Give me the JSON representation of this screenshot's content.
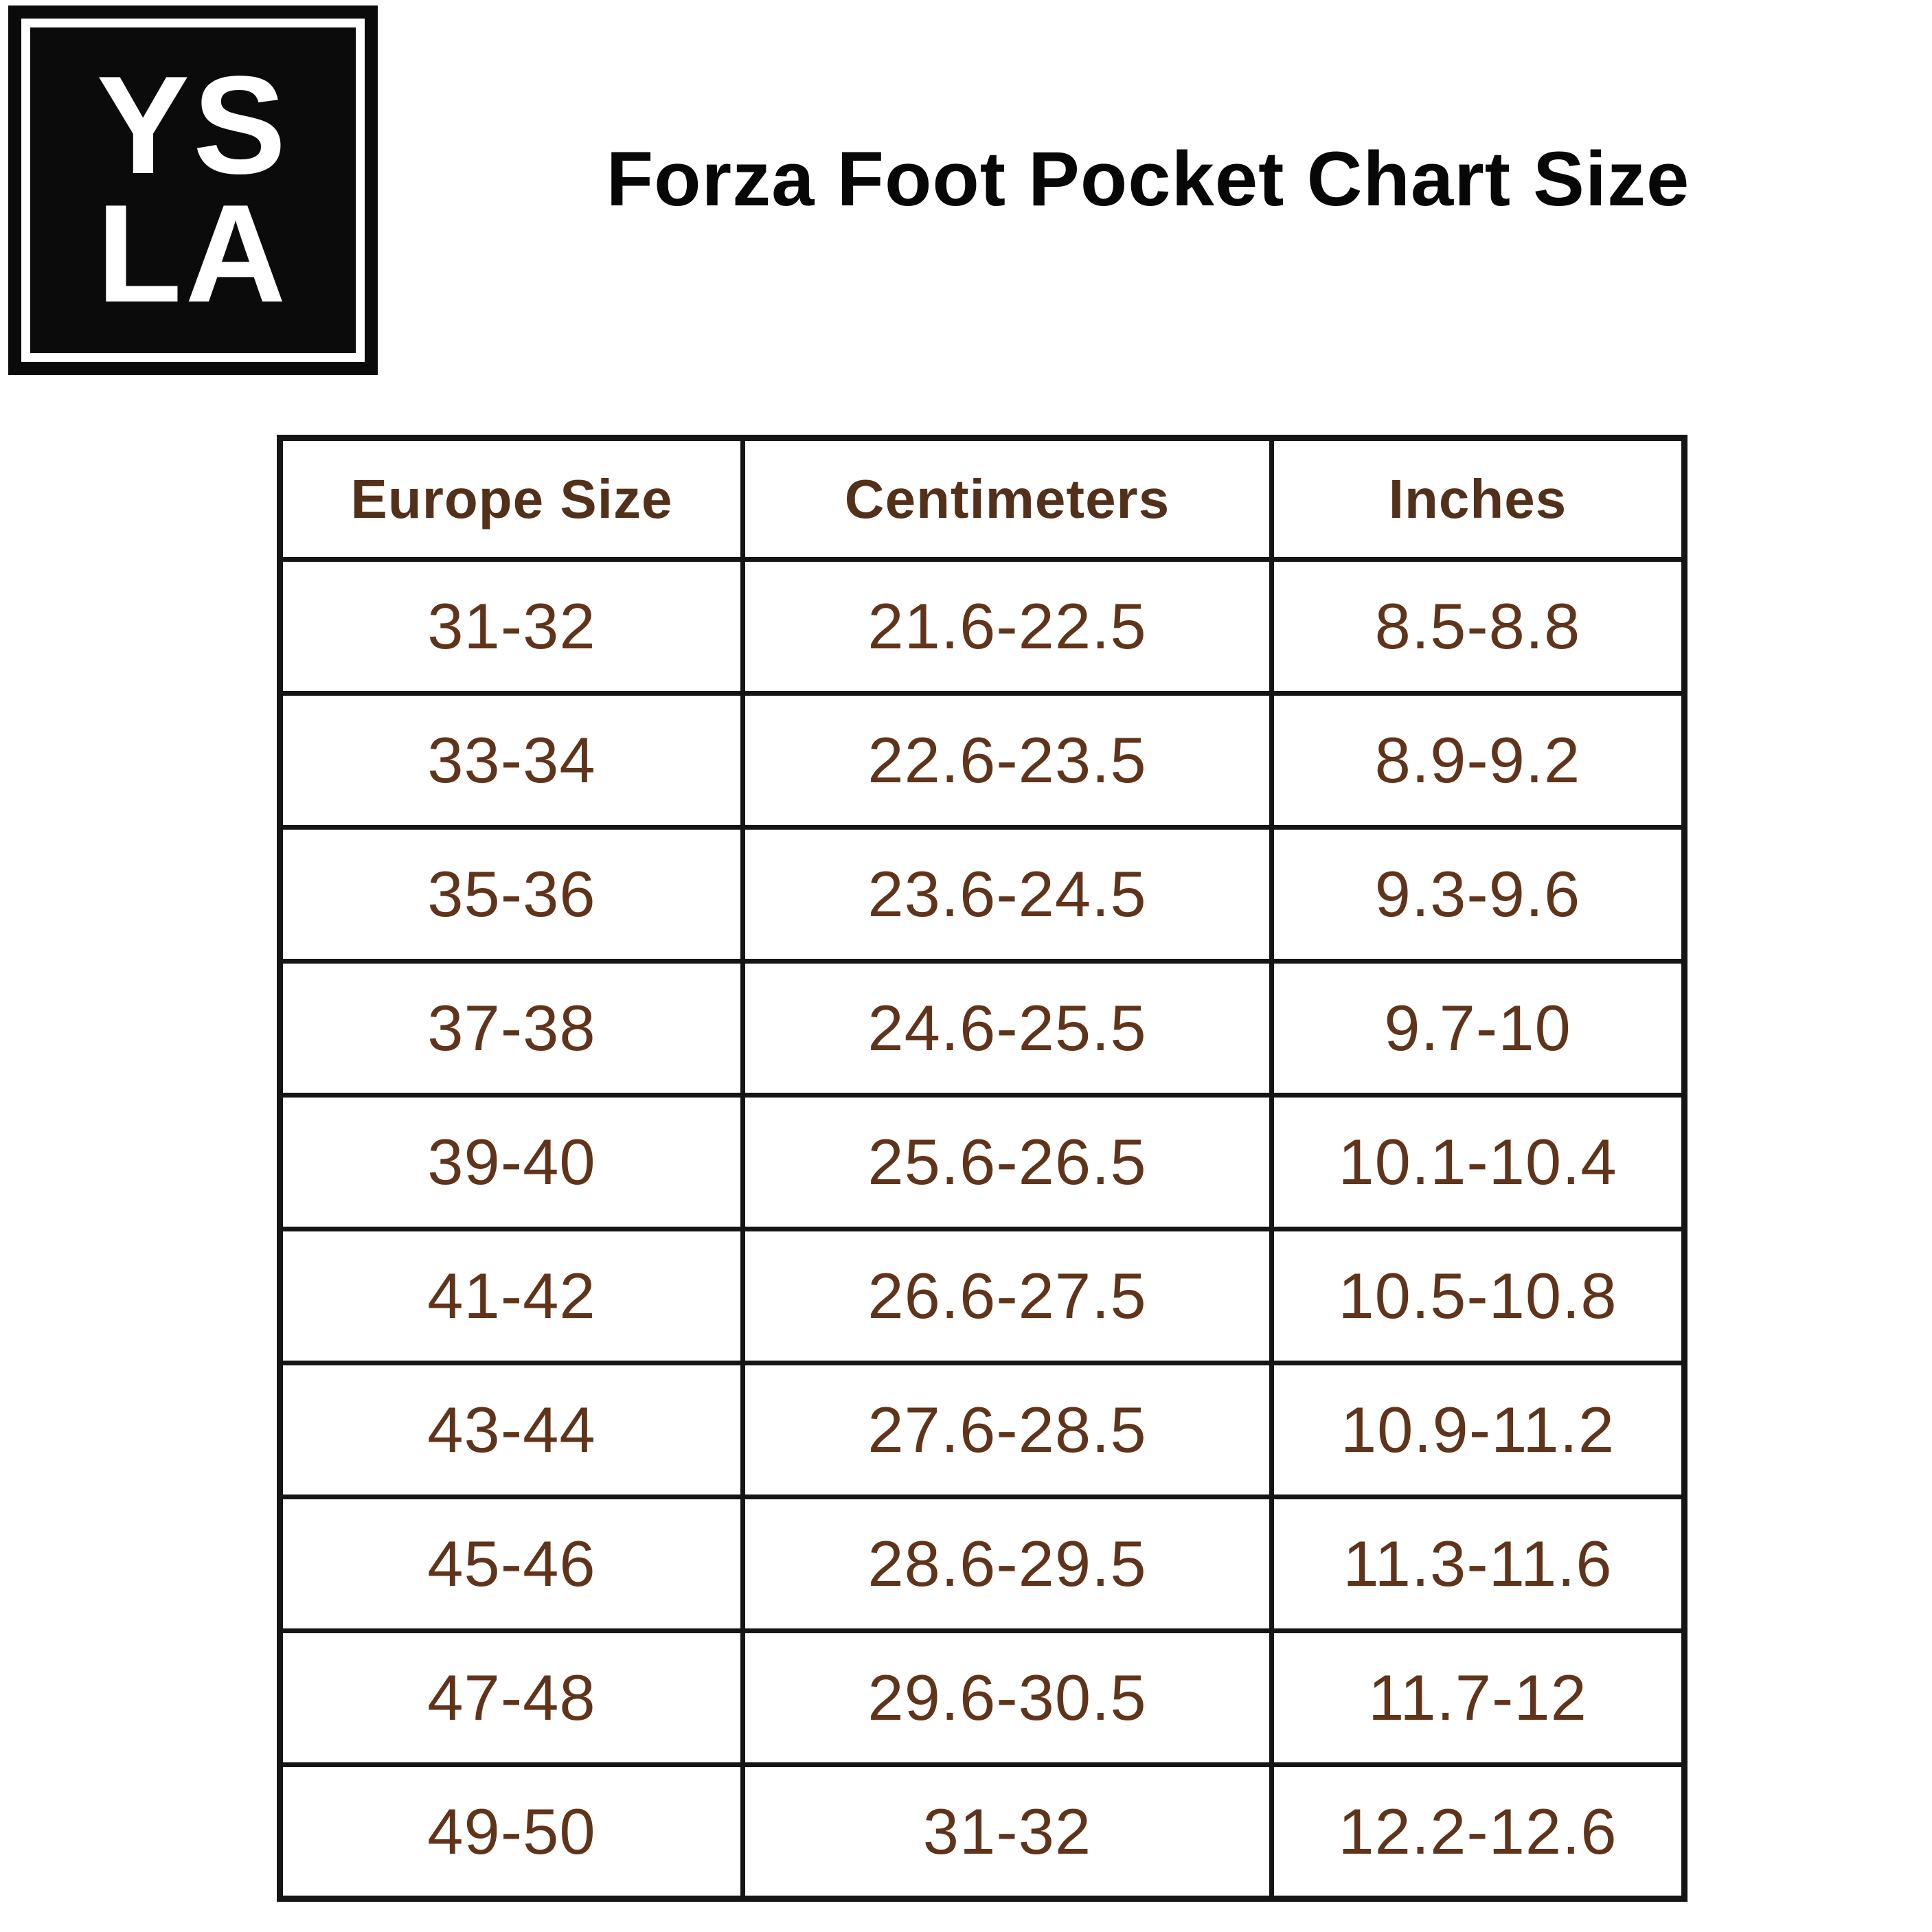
{
  "logo": {
    "line1": "YS",
    "line2": "LA",
    "bg_color": "#0b0b0b",
    "text_color": "#ffffff"
  },
  "title": "Forza Foot Pocket Chart Size",
  "colors": {
    "title_text": "#070707",
    "header_text": "#53301a",
    "cell_text": "#60341a",
    "table_border": "#151515",
    "background": "#ffffff"
  },
  "chart_data": {
    "type": "table",
    "title": "Forza Foot Pocket Chart Size",
    "columns": [
      "Europe Size",
      "Centimeters",
      "Inches"
    ],
    "rows": [
      [
        "31-32",
        "21.6-22.5",
        "8.5-8.8"
      ],
      [
        "33-34",
        "22.6-23.5",
        "8.9-9.2"
      ],
      [
        "35-36",
        "23.6-24.5",
        "9.3-9.6"
      ],
      [
        "37-38",
        "24.6-25.5",
        "9.7-10"
      ],
      [
        "39-40",
        "25.6-26.5",
        "10.1-10.4"
      ],
      [
        "41-42",
        "26.6-27.5",
        "10.5-10.8"
      ],
      [
        "43-44",
        "27.6-28.5",
        "10.9-11.2"
      ],
      [
        "45-46",
        "28.6-29.5",
        "11.3-11.6"
      ],
      [
        "47-48",
        "29.6-30.5",
        "11.7-12"
      ],
      [
        "49-50",
        "31-32",
        "12.2-12.6"
      ]
    ]
  }
}
